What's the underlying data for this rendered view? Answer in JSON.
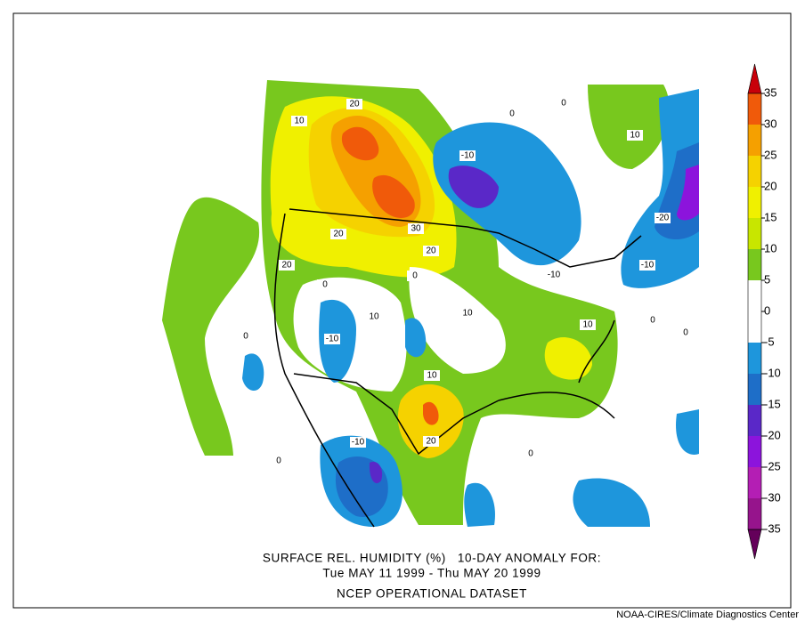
{
  "map": {
    "title": "SURFACE REL. HUMIDITY (%)   10-DAY ANOMALY FOR:",
    "subtitle": "Tue MAY 11 1999 - Thu MAY 20 1999",
    "dataset": "NCEP OPERATIONAL DATASET",
    "credit": "NOAA-CIRES/Climate Diagnostics Center",
    "colorbar": {
      "ticks": [
        35,
        30,
        25,
        20,
        15,
        10,
        5,
        0,
        -5,
        -10,
        -15,
        -20,
        -25,
        -30,
        -35
      ],
      "colors": [
        "#c8000a",
        "#f05a0a",
        "#f5a000",
        "#f5d200",
        "#f0f000",
        "#c8e600",
        "#78c81e",
        "#ffffff",
        "#ffffff",
        "#1e96dc",
        "#1e6ec8",
        "#5a28c8",
        "#8c14dc",
        "#b41eb4",
        "#96148c",
        "#64005a"
      ]
    },
    "contour_labels": [
      20,
      10,
      -10,
      10,
      0,
      0,
      -20,
      30,
      20,
      20,
      20,
      -10,
      -10,
      0,
      0,
      10,
      10,
      -10,
      0,
      10,
      0,
      0,
      10,
      20,
      -10,
      0,
      0
    ]
  }
}
